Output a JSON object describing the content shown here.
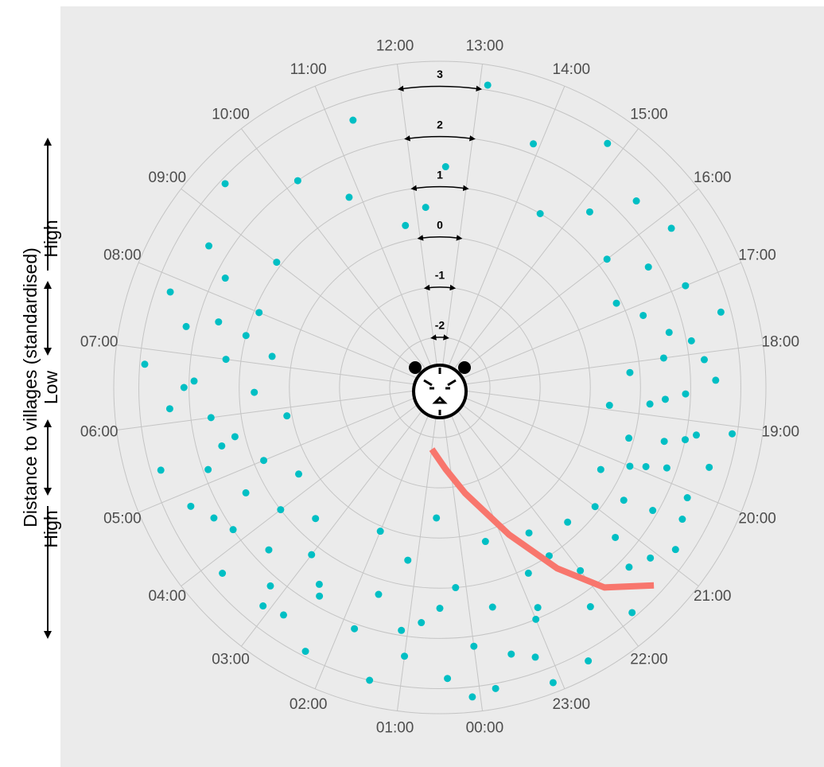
{
  "chart_data": {
    "type": "polar-scatter",
    "y_label": "Distance to villages (standardised)",
    "y_annotations": [
      "High",
      "Low",
      "High"
    ],
    "ylim": [
      -3,
      3.5
    ],
    "yticks": [
      -2,
      -1,
      0,
      1,
      2,
      3
    ],
    "xticks": [
      {
        "value": 0,
        "label": "00:00"
      },
      {
        "value": 1,
        "label": "01:00"
      },
      {
        "value": 2,
        "label": "02:00"
      },
      {
        "value": 3,
        "label": "03:00"
      },
      {
        "value": 4,
        "label": "04:00"
      },
      {
        "value": 5,
        "label": "05:00"
      },
      {
        "value": 6,
        "label": "06:00"
      },
      {
        "value": 7,
        "label": "07:00"
      },
      {
        "value": 8,
        "label": "08:00"
      },
      {
        "value": 9,
        "label": "09:00"
      },
      {
        "value": 10,
        "label": "10:00"
      },
      {
        "value": 11,
        "label": "11:00"
      },
      {
        "value": 12,
        "label": "12:00"
      },
      {
        "value": 13,
        "label": "13:00"
      },
      {
        "value": 14,
        "label": "14:00"
      },
      {
        "value": 15,
        "label": "15:00"
      },
      {
        "value": 16,
        "label": "16:00"
      },
      {
        "value": 17,
        "label": "17:00"
      },
      {
        "value": 18,
        "label": "18:00"
      },
      {
        "value": 19,
        "label": "19:00"
      },
      {
        "value": 20,
        "label": "20:00"
      },
      {
        "value": 21,
        "label": "21:00"
      },
      {
        "value": 22,
        "label": "22:00"
      },
      {
        "value": 23,
        "label": "23:00"
      }
    ],
    "points": {
      "color": "#00BFC4",
      "x": [
        17.5,
        17.8,
        18.0,
        18.2,
        18.4,
        18.6,
        18.8,
        18.9,
        19.1,
        19.2,
        19.4,
        19.5,
        19.6,
        19.8,
        20.0,
        20.1,
        20.3,
        20.5,
        20.6,
        20.8,
        21.0,
        21.2,
        21.4,
        17.2,
        17.0,
        16.8,
        16.5,
        16.2,
        16.0,
        15.6,
        15.2,
        14.8,
        14.5,
        13.9,
        13.1,
        12.6,
        12.2,
        2.3,
        2.5,
        2.8,
        3.0,
        3.2,
        3.4,
        3.6,
        3.8,
        4.0,
        4.2,
        4.4,
        4.6,
        4.8,
        5.0,
        5.2,
        5.4,
        5.6,
        5.8,
        6.0,
        6.2,
        6.4,
        6.6,
        6.8,
        7.0,
        7.2,
        7.4,
        7.6,
        7.8,
        8.0,
        8.3,
        8.6,
        9.0,
        9.4,
        10.2,
        10.8,
        11.3,
        11.7,
        21.6,
        21.8,
        22.0,
        22.2,
        22.4,
        22.6,
        22.8,
        23.0,
        23.2,
        23.4,
        23.6,
        23.8,
        0.0,
        0.2,
        0.4,
        0.6,
        0.8,
        1.0,
        1.2,
        1.4,
        1.6,
        1.8,
        2.0,
        0.1,
        23.1,
        22.3,
        18.1,
        18.7,
        19.3,
        19.9,
        20.4,
        17.6,
        3.1,
        4.5,
        5.5,
        6.5,
        7.5,
        1.1,
        0.5,
        23.5,
        22.9,
        21.1,
        2.6
      ],
      "values": [
        2.8,
        2.1,
        1.5,
        0.8,
        2.5,
        1.9,
        1.2,
        0.4,
        2.9,
        2.2,
        1.6,
        0.9,
        2.6,
        1.8,
        1.1,
        2.4,
        0.6,
        1.9,
        1.3,
        2.7,
        0.9,
        1.6,
        2.2,
        1.3,
        2.3,
        0.9,
        1.8,
        2.6,
        1.2,
        2.4,
        1.6,
        2.9,
        1.0,
        2.2,
        3.1,
        1.4,
        0.6,
        2.9,
        1.8,
        2.5,
        1.2,
        2.2,
        0.6,
        1.7,
        2.7,
        1.0,
        2.0,
        0.3,
        1.4,
        2.5,
        0.8,
        1.9,
        2.8,
        1.2,
        0.1,
        1.6,
        2.4,
        0.7,
        1.9,
        2.9,
        1.3,
        0.4,
        2.2,
        1.6,
        2.7,
        0.9,
        1.8,
        2.4,
        1.1,
        2.9,
        2.0,
        1.2,
        2.6,
        0.3,
        0.7,
        2.9,
        1.6,
        2.3,
        0.4,
        3.2,
        1.1,
        2.0,
        2.7,
        0.2,
        1.5,
        3.1,
        2.2,
        1.0,
        2.8,
        -0.4,
        1.7,
        2.4,
        0.5,
        3.0,
        1.3,
        2.1,
        0.1,
        3.2,
        3.3,
        1.0,
        2.3,
        1.5,
        2.0,
        1.4,
        2.5,
        1.7,
        2.6,
        2.2,
        1.5,
        2.1,
        1.0,
        1.9,
        1.4,
        2.5,
        1.8,
        2.4,
        1.6
      ]
    },
    "fit": {
      "color": "#F8766D",
      "x": [
        21.35,
        21.87,
        22.3,
        22.82,
        23.6,
        0.23,
        0.99
      ],
      "values": [
        2.81,
        2.16,
        1.3,
        0.24,
        -0.83,
        -1.37,
        -1.76
      ]
    }
  }
}
